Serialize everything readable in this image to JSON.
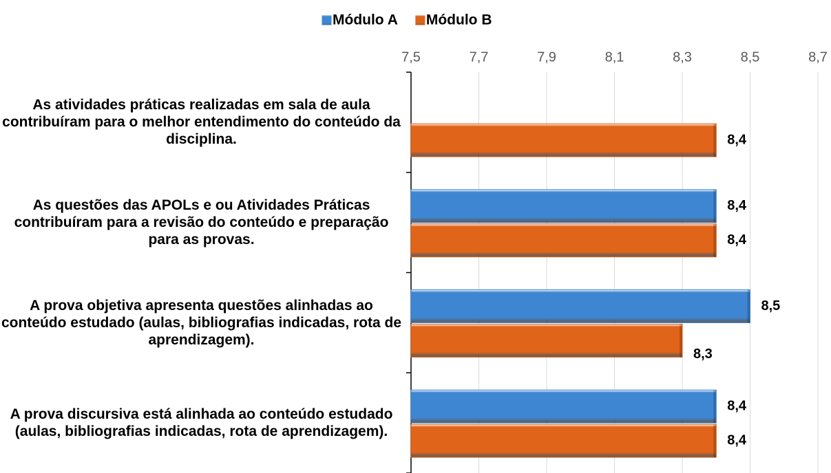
{
  "chart_data": {
    "type": "hbar",
    "categories": [
      "As atividades práticas realizadas em sala de aula contribuíram para o melhor entendimento do conteúdo da disciplina.",
      "As questões das APOLs e ou Atividades Práticas contribuíram para a revisão do conteúdo e preparação para as provas.",
      "A prova objetiva apresenta questões alinhadas ao conteúdo estudado (aulas, bibliografias indicadas, rota de aprendizagem).",
      "A prova discursiva está alinhada ao conteúdo estudado (aulas, bibliografias indicadas, rota de aprendizagem)."
    ],
    "series": [
      {
        "name": "Módulo A",
        "color": "#3f86d2",
        "values": [
          null,
          8.4,
          8.5,
          8.4
        ],
        "value_labels": [
          null,
          "8,4",
          "8,5",
          "8,4"
        ]
      },
      {
        "name": "Módulo B",
        "color": "#e0641a",
        "values": [
          8.4,
          8.4,
          8.3,
          8.4
        ],
        "value_labels": [
          "8,4",
          "8,4",
          "8,3",
          "8,4"
        ]
      }
    ],
    "xlim": [
      7.5,
      8.7
    ],
    "xticks": [
      {
        "value": 7.5,
        "label": "7,5"
      },
      {
        "value": 7.7,
        "label": "7,7"
      },
      {
        "value": 7.9,
        "label": "7,9"
      },
      {
        "value": 8.1,
        "label": "8,1"
      },
      {
        "value": 8.3,
        "label": "8,3"
      },
      {
        "value": 8.5,
        "label": "8,5"
      },
      {
        "value": 8.7,
        "label": "8,7"
      }
    ],
    "grid": true,
    "legend": "top"
  }
}
